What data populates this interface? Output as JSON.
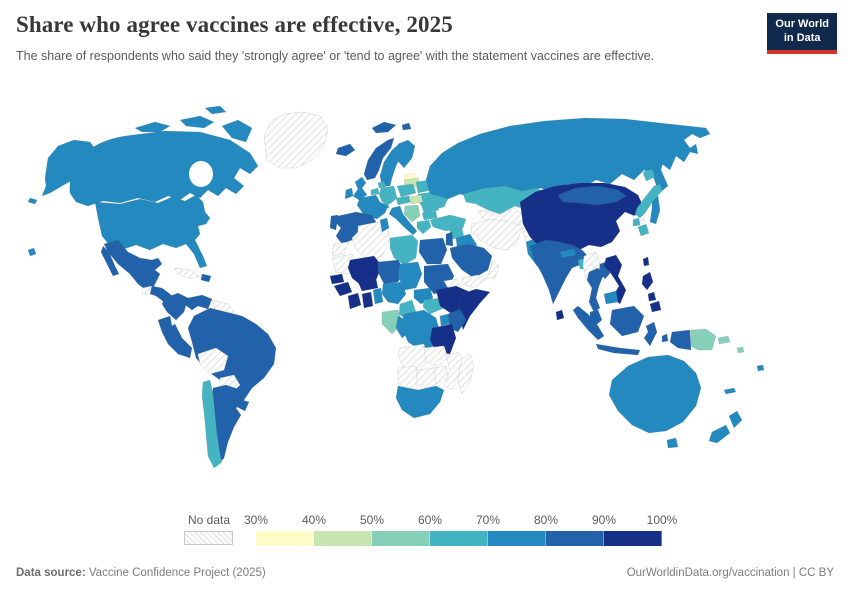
{
  "header": {
    "title": "Share who agree vaccines are effective, 2025",
    "subtitle": "The share of respondents who said they 'strongly agree' or 'tend to agree' with the statement vaccines are effective.",
    "logo": {
      "line1": "Our World",
      "line2": "in Data",
      "bg_color": "#12294e",
      "bar_color": "#d0342c"
    }
  },
  "legend": {
    "no_data_label": "No data",
    "ticks": [
      "30%",
      "40%",
      "50%",
      "60%",
      "70%",
      "80%",
      "90%",
      "100%"
    ]
  },
  "footer": {
    "source_label": "Data source:",
    "source_value": " Vaccine Confidence Project (2025)",
    "right_text": "OurWorldinData.org/vaccination | CC BY"
  },
  "chart_data": {
    "type": "heatmap",
    "subtype": "choropleth-world-map",
    "title": "Share who agree vaccines are effective, 2025",
    "unit": "%",
    "legend_position": "bottom",
    "bins": [
      {
        "range": "30-40",
        "color": "#fdfcc8"
      },
      {
        "range": "40-50",
        "color": "#c7e5b1"
      },
      {
        "range": "50-60",
        "color": "#86cfb8"
      },
      {
        "range": "60-70",
        "color": "#45b4c2"
      },
      {
        "range": "70-80",
        "color": "#2389bf"
      },
      {
        "range": "80-90",
        "color": "#2262aa"
      },
      {
        "range": "90-100",
        "color": "#16308a"
      }
    ],
    "no_data": {
      "label": "No data",
      "pattern": "diagonal-hatch"
    },
    "values": {
      "canada": "70-80",
      "united-states": "70-80",
      "alaska": "70-80",
      "hawaii": "70-80",
      "greenland": "no-data",
      "iceland": "80-90",
      "svalbard": "80-90",
      "mexico": "80-90",
      "guatemala": "no-data",
      "central-america": "80-90",
      "cuba": "no-data",
      "hispaniola": "80-90",
      "colombia": "80-90",
      "venezuela": "80-90",
      "guyanas": "no-data",
      "ecuador": "80-90",
      "peru": "80-90",
      "brazil": "80-90",
      "bolivia": "no-data",
      "paraguay": "no-data",
      "chile": "60-70",
      "argentina": "80-90",
      "uruguay": "80-90",
      "norway": "80-90",
      "sweden": "70-80",
      "finland": "70-80",
      "denmark": "60-70",
      "estonia": "30-40",
      "latvia-lithuania": "40-50",
      "united-kingdom": "70-80",
      "ireland": "70-80",
      "netherlands-belgium": "60-70",
      "germany": "60-70",
      "poland": "60-70",
      "belarus": "60-70",
      "ukraine": "60-70",
      "czech-austria": "60-70",
      "switzerland": "60-70",
      "hungary-slovakia": "40-50",
      "romania": "60-70",
      "balkans": "50-60",
      "bulgaria": "60-70",
      "greece": "60-70",
      "france": "70-80",
      "spain": "80-90",
      "portugal": "80-90",
      "italy": "70-80",
      "russia": "70-80",
      "kazakhstan": "60-70",
      "uzbekistan-turkmenistan": "no-data",
      "kyrgyzstan": "70-80",
      "tajikistan": "70-80",
      "turkey": "60-70",
      "syria": "60-70",
      "jordan-israel": "80-90",
      "iraq": "70-80",
      "iran": "no-data",
      "afghanistan": "no-data",
      "pakistan": "70-80",
      "saudi-arabia": "80-90",
      "yemen": "no-data",
      "oman": "no-data",
      "india": "80-90",
      "nepal": "70-80",
      "bangladesh": "60-70",
      "sri-lanka": "90-100",
      "myanmar": "no-data",
      "china": "90-100",
      "mongolia": "80-90",
      "north-korea": "no-data",
      "south-korea": "60-70",
      "japan": "60-70",
      "taiwan": "90-100",
      "thailand": "80-90",
      "laos": "80-90",
      "vietnam": "90-100",
      "cambodia": "70-80",
      "malaysia": "80-90",
      "indonesia": "80-90",
      "philippines": "90-100",
      "papua-new-guinea": "50-60",
      "solomon-islands": "50-60",
      "australia": "70-80",
      "new-zealand": "70-80",
      "fiji": "70-80",
      "new-caledonia": "70-80",
      "morocco": "80-90",
      "western-sahara": "no-data",
      "algeria": "no-data",
      "tunisia": "70-80",
      "libya": "60-70",
      "egypt": "80-90",
      "mauritania": "no-data",
      "mali": "90-100",
      "niger": "80-90",
      "chad": "70-80",
      "sudan": "80-90",
      "eritrea": "no-data",
      "senegal": "90-100",
      "guinea": "90-100",
      "cote-divoire": "90-100",
      "ghana": "90-100",
      "burkina-faso": "90-100",
      "togo-benin": "70-80",
      "nigeria": "70-80",
      "cameroon": "60-70",
      "central-african-republic": "70-80",
      "south-sudan": "60-70",
      "ethiopia": "90-100",
      "somalia": "90-100",
      "kenya": "80-90",
      "uganda": "70-80",
      "drc": "70-80",
      "congo": "70-80",
      "gabon": "50-60",
      "tanzania": "90-100",
      "angola": "no-data",
      "zambia": "no-data",
      "zimbabwe": "no-data",
      "mozambique": "no-data",
      "namibia": "no-data",
      "botswana": "no-data",
      "south-africa": "70-80",
      "madagascar": "no-data"
    }
  }
}
